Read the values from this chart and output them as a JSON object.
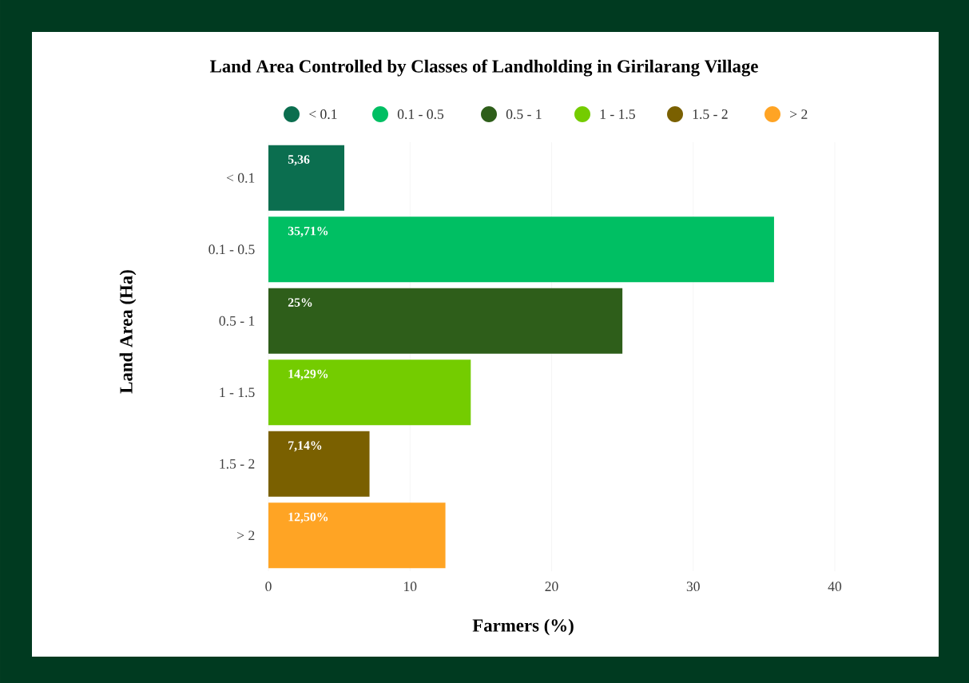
{
  "chart_data": {
    "type": "bar",
    "orientation": "horizontal",
    "title": "Land Area Controlled by Classes of Landholding in Girilarang Village",
    "categories": [
      "< 0.1",
      "0.1 - 0.5",
      "0.5 - 1",
      "1 - 1.5",
      "1.5 - 2",
      "> 2"
    ],
    "series": [
      {
        "name": "< 0.1",
        "color": "#0b6e4f",
        "values": [
          5.36,
          null,
          null,
          null,
          null,
          null
        ],
        "value_labels": [
          "5,36",
          null,
          null,
          null,
          null,
          null
        ]
      },
      {
        "name": "0.1 - 0.5",
        "color": "#00bf63",
        "values": [
          null,
          35.71,
          null,
          null,
          null,
          null
        ],
        "value_labels": [
          null,
          "35,71%",
          null,
          null,
          null,
          null
        ]
      },
      {
        "name": "0.5 - 1",
        "color": "#2e5e1a",
        "values": [
          null,
          null,
          25,
          null,
          null,
          null
        ],
        "value_labels": [
          null,
          null,
          "25%",
          null,
          null,
          null
        ]
      },
      {
        "name": "1 - 1.5",
        "color": "#74cc00",
        "values": [
          null,
          null,
          null,
          14.29,
          null,
          null
        ],
        "value_labels": [
          null,
          null,
          null,
          "14,29%",
          null,
          null
        ]
      },
      {
        "name": "1.5 - 2",
        "color": "#7a6000",
        "values": [
          null,
          null,
          null,
          null,
          7.14,
          null
        ],
        "value_labels": [
          null,
          null,
          null,
          null,
          "7,14%",
          null
        ]
      },
      {
        "name": "> 2",
        "color": "#ffa424",
        "values": [
          null,
          null,
          null,
          null,
          null,
          12.5
        ],
        "value_labels": [
          null,
          null,
          null,
          null,
          null,
          "12,50%"
        ]
      }
    ],
    "xlim": [
      0,
      40
    ],
    "xticks": [
      0,
      10,
      20,
      30,
      40
    ],
    "xlabel": "Farmers (%)",
    "ylabel": "Land Area (Ha)",
    "grid": "x",
    "legend": "top"
  }
}
